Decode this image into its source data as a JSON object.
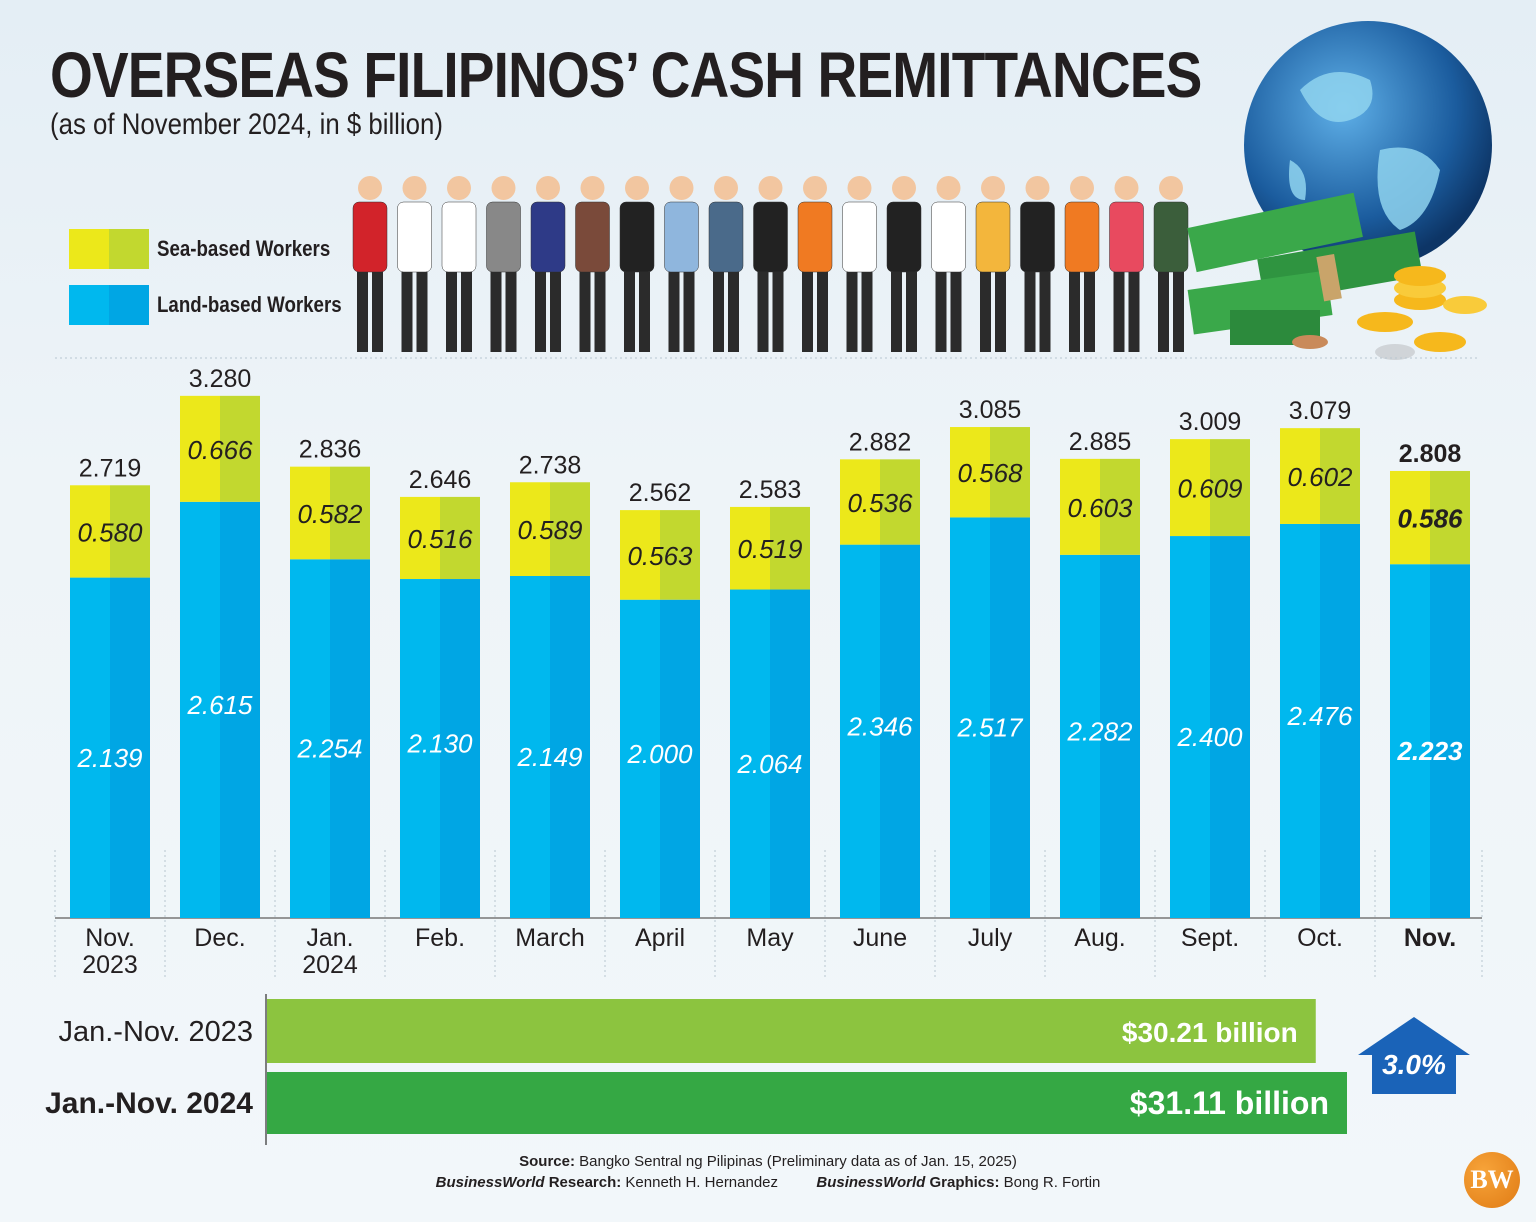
{
  "header": {
    "title": "OVERSEAS FILIPINOS’ CASH REMITTANCES",
    "subtitle": "(as of November 2024, in $ billion)"
  },
  "legend": [
    {
      "label": "Sea-based Workers",
      "colors": [
        "#ece81a",
        "#c2d82f"
      ]
    },
    {
      "label": "Land-based Workers",
      "colors": [
        "#00b8ee",
        "#00a6e4"
      ]
    }
  ],
  "chart_data": {
    "type": "bar",
    "stacked": true,
    "title": "OVERSEAS FILIPINOS’ CASH REMITTANCES",
    "subtitle": "(as of November 2024, in $ billion)",
    "categories": [
      [
        "Nov.",
        "2023"
      ],
      [
        "Dec."
      ],
      [
        "Jan.",
        "2024"
      ],
      [
        "Feb."
      ],
      [
        "March"
      ],
      [
        "April"
      ],
      [
        "May"
      ],
      [
        "June"
      ],
      [
        "July"
      ],
      [
        "Aug."
      ],
      [
        "Sept."
      ],
      [
        "Oct."
      ],
      [
        "Nov."
      ]
    ],
    "series": [
      {
        "name": "Land-based Workers",
        "values": [
          "2.139",
          "2.615",
          "2.254",
          "2.130",
          "2.149",
          "2.000",
          "2.064",
          "2.346",
          "2.517",
          "2.282",
          "2.400",
          "2.476",
          "2.223"
        ]
      },
      {
        "name": "Sea-based Workers",
        "values": [
          "0.580",
          "0.666",
          "0.582",
          "0.516",
          "0.589",
          "0.563",
          "0.519",
          "0.536",
          "0.568",
          "0.603",
          "0.609",
          "0.602",
          "0.586"
        ]
      }
    ],
    "totals": [
      "2.719",
      "3.280",
      "2.836",
      "2.646",
      "2.738",
      "2.562",
      "2.583",
      "2.882",
      "3.085",
      "2.885",
      "3.009",
      "3.079",
      "2.808"
    ],
    "ylim": [
      0,
      3.3
    ],
    "grid": false,
    "legend_position": "top-left"
  },
  "comparison": {
    "rows": [
      {
        "label": "Jan.-Nov. 2023",
        "value_label": "$30.21 billion",
        "value": 30.21,
        "color": "#8cc43f"
      },
      {
        "label": "Jan.-Nov. 2024",
        "value_label": "$31.11 billion",
        "value": 31.11,
        "color": "#35a844"
      }
    ],
    "growth": "3.0%",
    "growth_icon": "up-arrow-icon"
  },
  "footer": {
    "source_label": "Source:",
    "source_text": "Bangko Sentral ng Pilipinas (Preliminary data as of Jan. 15, 2025)",
    "research_brand": "BusinessWorld",
    "research_label": "Research:",
    "research_name": "Kenneth H. Hernandez",
    "graphics_brand": "BusinessWorld",
    "graphics_label": "Graphics:",
    "graphics_name": "Bong R. Fortin",
    "logo": "BW"
  }
}
